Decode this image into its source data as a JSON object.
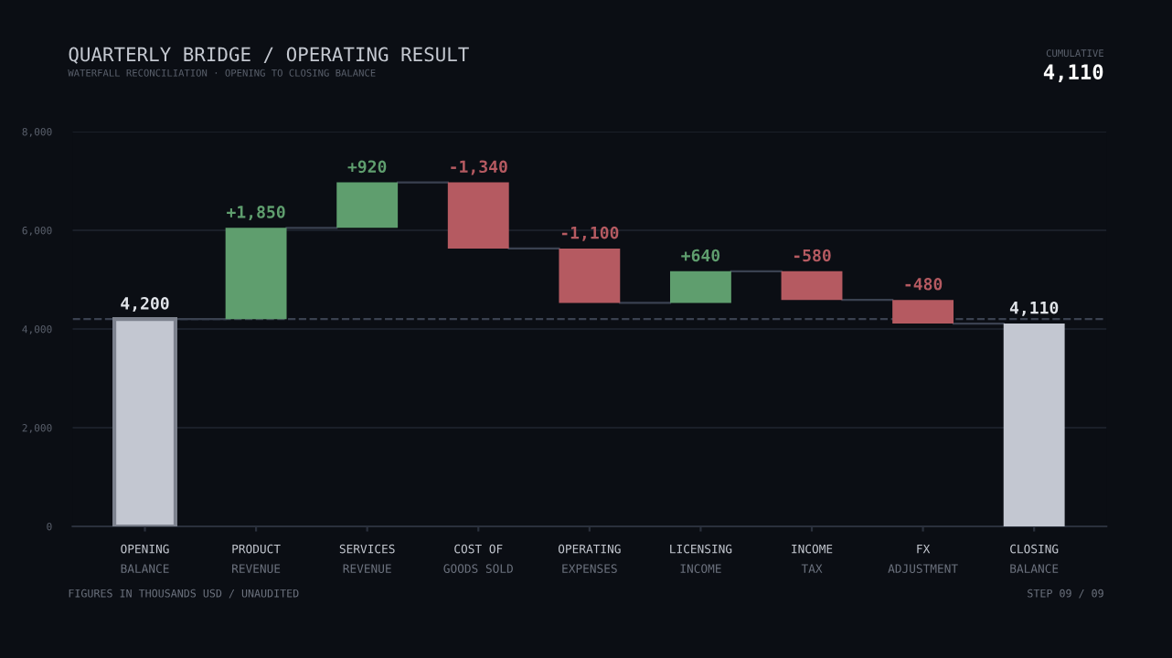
{
  "chart_data": {
    "type": "bar",
    "title": "QUARTERLY BRIDGE / OPERATING RESULT",
    "subtitle": "WATERFALL RECONCILIATION · OPENING TO CLOSING BALANCE",
    "categories": [
      "OPENING\nBALANCE",
      "PRODUCT\nREVENUE",
      "SERVICES\nREVENUE",
      "COST OF\nGOODS SOLD",
      "OPERATING\nEXPENSES",
      "LICENSING\nINCOME",
      "INCOME\nTAX",
      "FX\nADJUSTMENT",
      "CLOSING\nBALANCE"
    ],
    "values": [
      4200,
      1850,
      920,
      -1340,
      -1100,
      640,
      -580,
      -480,
      4110
    ],
    "base": [
      0,
      4200,
      6050,
      6970,
      5630,
      4530,
      5170,
      4590,
      0
    ],
    "colors": [
      "#c3c7d1",
      "#5f9e6e",
      "#5f9e6e",
      "#b55a61",
      "#b55a61",
      "#5f9e6e",
      "#b55a61",
      "#b55a61",
      "#c3c7d1"
    ],
    "value_labels": [
      "4,200",
      "+1,850",
      "+920",
      "-1,340",
      "-1,100",
      "+640",
      "-580",
      "-480",
      "4,110"
    ],
    "ylim": [
      0,
      8000
    ],
    "yticks": [
      {
        "value": 0,
        "label": "0"
      },
      {
        "value": 2000,
        "label": "2,000"
      },
      {
        "value": 4000,
        "label": "4,000"
      },
      {
        "value": 6000,
        "label": "6,000"
      },
      {
        "value": 8000,
        "label": "8,000"
      }
    ],
    "grid": "y",
    "ref_lines": [
      {
        "axis": "y",
        "value": 4200,
        "label": null,
        "color": "#3a4150",
        "line_style": "dashed"
      }
    ],
    "annotations": [
      "CUMULATIVE",
      "4,110",
      "FIGURES IN THOUSANDS USD / UNAUDITED",
      "STEP 09 / 09"
    ]
  }
}
